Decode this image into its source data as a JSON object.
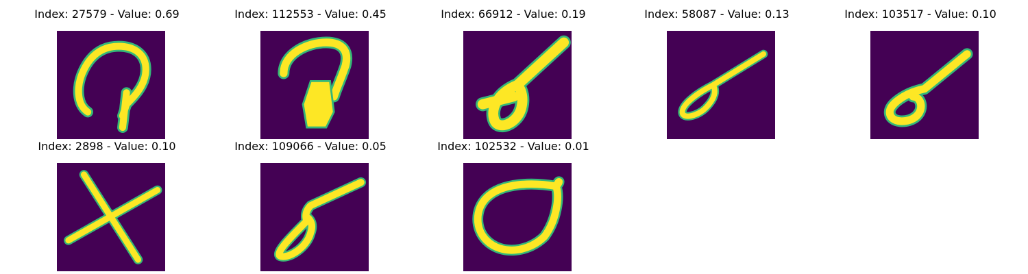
{
  "colors": {
    "background": "#440154",
    "stroke": "#fde725",
    "edge": "#35b779"
  },
  "panels": [
    {
      "index": "27579",
      "value": "0.69",
      "title": "Index: 27579 - Value: 0.69",
      "glyph": "loop-with-stem"
    },
    {
      "index": "112553",
      "value": "0.45",
      "title": "Index: 112553 - Value: 0.45",
      "glyph": "hook-with-block"
    },
    {
      "index": "66912",
      "value": "0.19",
      "title": "Index: 66912 - Value: 0.19",
      "glyph": "diagonal-with-loop"
    },
    {
      "index": "58087",
      "value": "0.13",
      "title": "Index: 58087 - Value: 0.13",
      "glyph": "diagonal-with-loop"
    },
    {
      "index": "103517",
      "value": "0.10",
      "title": "Index: 103517 - Value: 0.10",
      "glyph": "diagonal-with-loop"
    },
    {
      "index": "2898",
      "value": "0.10",
      "title": "Index: 2898 - Value: 0.10",
      "glyph": "x-cross"
    },
    {
      "index": "109066",
      "value": "0.05",
      "title": "Index: 109066 - Value: 0.05",
      "glyph": "diagonal-with-loop"
    },
    {
      "index": "102532",
      "value": "0.01",
      "title": "Index: 102532 - Value: 0.01",
      "glyph": "teardrop-loop"
    }
  ]
}
